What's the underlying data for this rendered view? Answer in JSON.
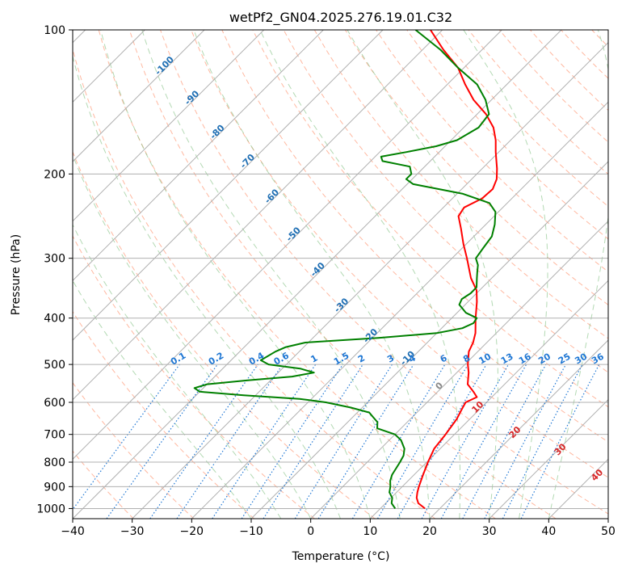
{
  "chart_data": {
    "type": "line",
    "title": "wetPf2_GN04.2025.276.19.01.C32",
    "xlabel": "Temperature (°C)",
    "ylabel": "Pressure (hPa)",
    "xlim": [
      -40,
      50
    ],
    "ylim": [
      1050,
      100
    ],
    "y_scale": "log",
    "x_ticks": [
      -40,
      -30,
      -20,
      -10,
      0,
      10,
      20,
      30,
      40,
      50
    ],
    "y_ticks": [
      1000,
      900,
      800,
      700,
      600,
      500,
      400,
      300,
      200,
      100
    ],
    "grid": true,
    "skew": 45,
    "colors": {
      "temperature": "#ff0000",
      "dewpoint": "#008000",
      "isotherm": "#b0b0b0",
      "dry_adiabat": "#ffa080",
      "moist_adiabat": "#80c080",
      "mixing_ratio": "#1f77d4",
      "isotherm_label": "#1f6fb4",
      "wetbulb_label": "#d62728"
    },
    "series": [
      {
        "name": "temperature",
        "points": [
          [
            1000,
            17.5
          ],
          [
            975,
            15.5
          ],
          [
            950,
            14.3
          ],
          [
            925,
            13.5
          ],
          [
            900,
            12.8
          ],
          [
            850,
            11.5
          ],
          [
            800,
            10.2
          ],
          [
            750,
            9.0
          ],
          [
            700,
            8.5
          ],
          [
            650,
            7.8
          ],
          [
            620,
            7.0
          ],
          [
            600,
            6.5
          ],
          [
            585,
            7.5
          ],
          [
            570,
            6.0
          ],
          [
            550,
            3.8
          ],
          [
            520,
            2.0
          ],
          [
            500,
            0.5
          ],
          [
            470,
            -1.5
          ],
          [
            450,
            -2.3
          ],
          [
            430,
            -3.5
          ],
          [
            400,
            -6.0
          ],
          [
            370,
            -8.5
          ],
          [
            350,
            -10.5
          ],
          [
            330,
            -13.5
          ],
          [
            300,
            -17.5
          ],
          [
            280,
            -20.5
          ],
          [
            260,
            -23.5
          ],
          [
            245,
            -26.0
          ],
          [
            235,
            -26.5
          ],
          [
            225,
            -25.0
          ],
          [
            215,
            -24.8
          ],
          [
            205,
            -25.8
          ],
          [
            195,
            -27.5
          ],
          [
            180,
            -30.5
          ],
          [
            170,
            -32.5
          ],
          [
            160,
            -35.0
          ],
          [
            150,
            -38.5
          ],
          [
            140,
            -43.0
          ],
          [
            130,
            -47.0
          ],
          [
            120,
            -51.0
          ],
          [
            110,
            -56.5
          ],
          [
            100,
            -62.0
          ]
        ]
      },
      {
        "name": "dewpoint",
        "points": [
          [
            1000,
            12.5
          ],
          [
            975,
            11.0
          ],
          [
            950,
            10.2
          ],
          [
            925,
            8.8
          ],
          [
            900,
            8.0
          ],
          [
            875,
            7.0
          ],
          [
            850,
            6.3
          ],
          [
            800,
            5.5
          ],
          [
            775,
            5.0
          ],
          [
            750,
            4.0
          ],
          [
            720,
            2.0
          ],
          [
            700,
            0.0
          ],
          [
            680,
            -4.0
          ],
          [
            660,
            -5.0
          ],
          [
            645,
            -6.5
          ],
          [
            630,
            -8.0
          ],
          [
            615,
            -12.0
          ],
          [
            600,
            -17.0
          ],
          [
            590,
            -22.0
          ],
          [
            580,
            -32.0
          ],
          [
            570,
            -40.0
          ],
          [
            560,
            -41.5
          ],
          [
            550,
            -40.0
          ],
          [
            540,
            -34.0
          ],
          [
            530,
            -27.0
          ],
          [
            520,
            -24.0
          ],
          [
            510,
            -27.0
          ],
          [
            500,
            -33.0
          ],
          [
            490,
            -35.0
          ],
          [
            470,
            -34.0
          ],
          [
            460,
            -33.0
          ],
          [
            450,
            -30.5
          ],
          [
            440,
            -19.0
          ],
          [
            430,
            -10.0
          ],
          [
            420,
            -6.5
          ],
          [
            410,
            -5.5
          ],
          [
            400,
            -5.8
          ],
          [
            390,
            -8.5
          ],
          [
            375,
            -11.0
          ],
          [
            365,
            -11.5
          ],
          [
            355,
            -11.0
          ],
          [
            345,
            -11.0
          ],
          [
            330,
            -12.5
          ],
          [
            320,
            -13.5
          ],
          [
            310,
            -14.5
          ],
          [
            300,
            -16.0
          ],
          [
            285,
            -16.5
          ],
          [
            270,
            -17.0
          ],
          [
            255,
            -18.5
          ],
          [
            240,
            -20.5
          ],
          [
            230,
            -23.0
          ],
          [
            220,
            -29.0
          ],
          [
            210,
            -39.0
          ],
          [
            205,
            -41.0
          ],
          [
            200,
            -41.0
          ],
          [
            193,
            -42.5
          ],
          [
            188,
            -48.0
          ],
          [
            184,
            -49.0
          ],
          [
            180,
            -45.5
          ],
          [
            175,
            -41.5
          ],
          [
            170,
            -39.0
          ],
          [
            160,
            -37.5
          ],
          [
            150,
            -38.0
          ],
          [
            140,
            -41.0
          ],
          [
            130,
            -45.0
          ],
          [
            120,
            -51.0
          ],
          [
            110,
            -57.0
          ],
          [
            100,
            -64.5
          ]
        ]
      }
    ],
    "isotherm_labels": [
      -100,
      -90,
      -80,
      -70,
      -60,
      -50,
      -40,
      -30,
      -20,
      -10,
      0
    ],
    "wetbulb_labels": [
      10,
      20,
      30,
      40
    ],
    "mixing_ratio_labels": [
      "0.1",
      "0.2",
      "0.4",
      "0.6",
      "1",
      "1.5",
      "2",
      "3",
      "4",
      "6",
      "8",
      "10",
      "13",
      "16",
      "20",
      "25",
      "30",
      "36"
    ]
  }
}
